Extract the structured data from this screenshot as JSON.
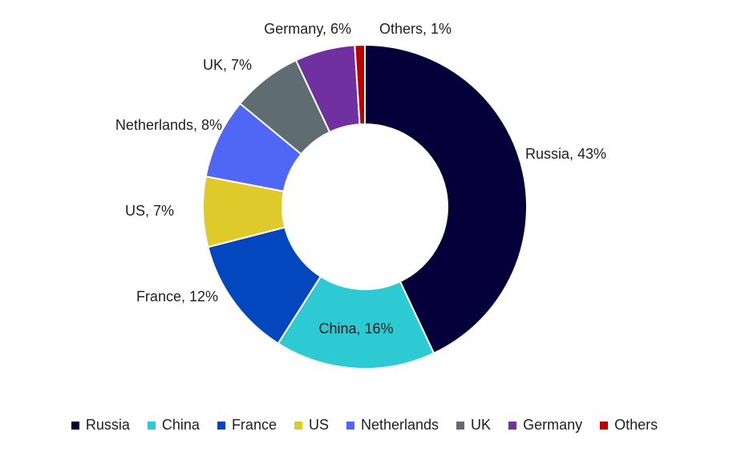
{
  "chart_data": {
    "type": "pie",
    "donut": true,
    "legend_position": "bottom",
    "slices": [
      {
        "label": "Russia",
        "value": 43,
        "display": "Russia, 43%",
        "color": "#05003a"
      },
      {
        "label": "China",
        "value": 16,
        "display": "China, 16%",
        "color": "#2ecad3"
      },
      {
        "label": "France",
        "value": 12,
        "display": "France, 12%",
        "color": "#0446be"
      },
      {
        "label": "US",
        "value": 7,
        "display": "US, 7%",
        "color": "#dfca2c"
      },
      {
        "label": "Netherlands",
        "value": 8,
        "display": "Netherlands, 8%",
        "color": "#5066f4"
      },
      {
        "label": "UK",
        "value": 7,
        "display": "UK, 7%",
        "color": "#5f6c72"
      },
      {
        "label": "Germany",
        "value": 6,
        "display": "Germany, 6%",
        "color": "#7030a0"
      },
      {
        "label": "Others",
        "value": 1,
        "display": "Others, 1%",
        "color": "#c00000"
      }
    ]
  }
}
